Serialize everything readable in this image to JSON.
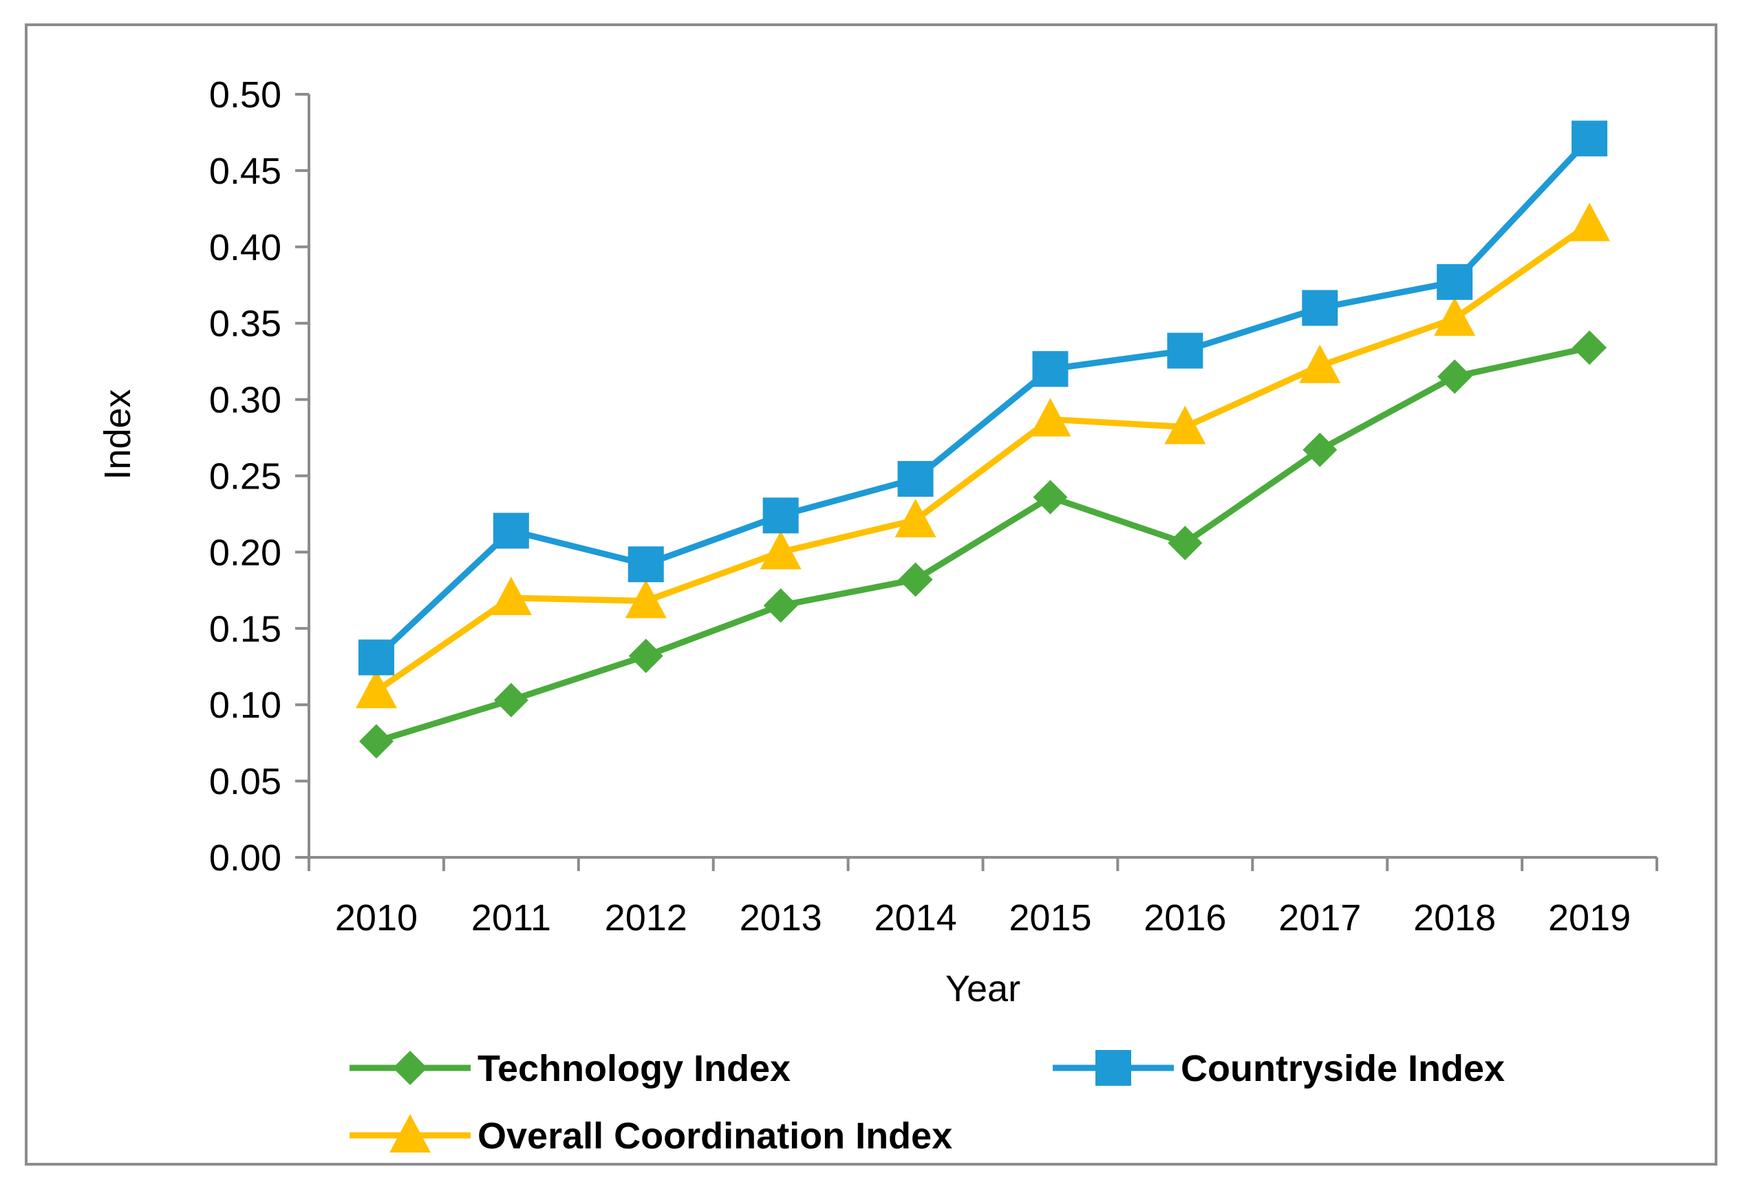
{
  "chart_data": {
    "type": "line",
    "title": "",
    "xlabel": "Year",
    "ylabel": "Index",
    "categories": [
      "2010",
      "2011",
      "2012",
      "2013",
      "2014",
      "2015",
      "2016",
      "2017",
      "2018",
      "2019"
    ],
    "ylim": [
      0,
      0.5
    ],
    "yticks": [
      "0.00",
      "0.05",
      "0.10",
      "0.15",
      "0.20",
      "0.25",
      "0.30",
      "0.35",
      "0.40",
      "0.45",
      "0.50"
    ],
    "grid": false,
    "legend_position": "bottom",
    "series": [
      {
        "name": "Technology Index",
        "color": "#4aab3c",
        "marker": "diamond",
        "values": [
          0.076,
          0.103,
          0.132,
          0.165,
          0.182,
          0.236,
          0.206,
          0.267,
          0.315,
          0.334
        ]
      },
      {
        "name": "Countryside Index",
        "color": "#1e9ad6",
        "marker": "square",
        "values": [
          0.131,
          0.214,
          0.192,
          0.224,
          0.248,
          0.32,
          0.332,
          0.36,
          0.377,
          0.471
        ]
      },
      {
        "name": "Overall Coordination Index",
        "color": "#ffc000",
        "marker": "triangle",
        "values": [
          0.109,
          0.17,
          0.168,
          0.2,
          0.221,
          0.287,
          0.282,
          0.322,
          0.353,
          0.415
        ]
      }
    ]
  }
}
